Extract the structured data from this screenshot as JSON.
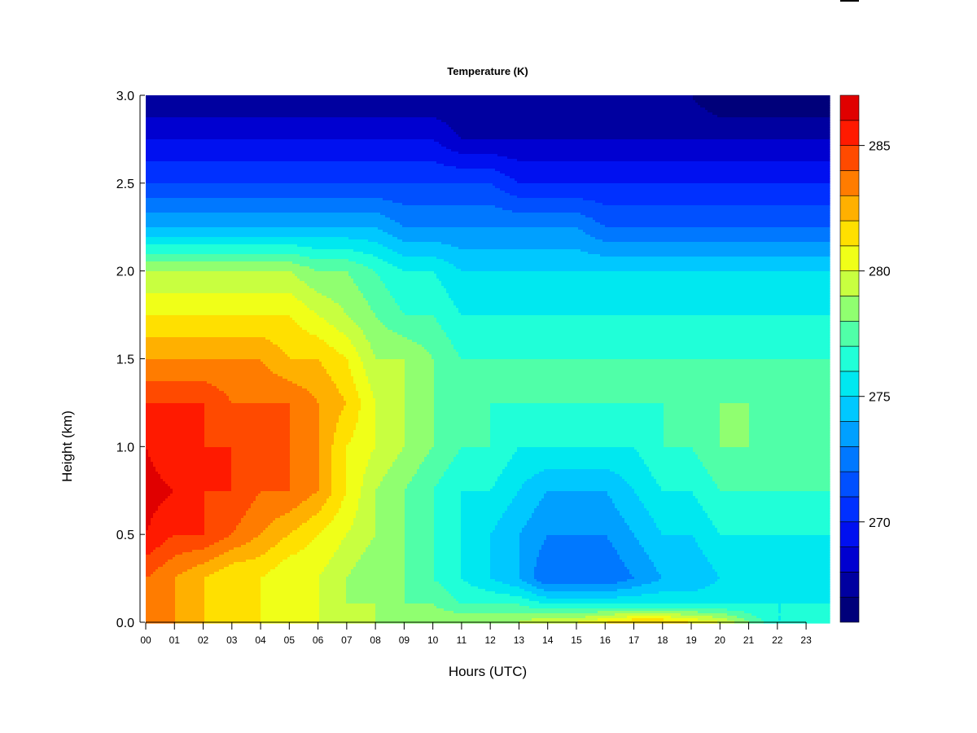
{
  "chart_data": {
    "type": "heatmap",
    "title": "Temperature (K)",
    "xlabel": "Hours (UTC)",
    "ylabel": "Height (km)",
    "xlim": [
      0,
      23.82
    ],
    "ylim": [
      0,
      3.0
    ],
    "x_ticks": [
      "00",
      "01",
      "02",
      "03",
      "04",
      "05",
      "06",
      "07",
      "08",
      "09",
      "10",
      "11",
      "12",
      "13",
      "14",
      "15",
      "16",
      "17",
      "18",
      "19",
      "20",
      "21",
      "22",
      "23"
    ],
    "y_ticks": [
      "0.0",
      "0.5",
      "1.0",
      "1.5",
      "2.0",
      "2.5",
      "3.0"
    ],
    "colorbar": {
      "levels": [
        266,
        267,
        268,
        269,
        270,
        271,
        272,
        273,
        274,
        275,
        276,
        277,
        278,
        279,
        280,
        281,
        282,
        283,
        284,
        285,
        286,
        287
      ],
      "colors": [
        "#00007a",
        "#0000a0",
        "#0000d0",
        "#0010f0",
        "#0030ff",
        "#0050ff",
        "#0078ff",
        "#00a0ff",
        "#00c8ff",
        "#00e8f0",
        "#20ffd8",
        "#50ffa8",
        "#90ff70",
        "#c8ff40",
        "#f0ff18",
        "#ffe000",
        "#ffb000",
        "#ff7c00",
        "#ff4a00",
        "#ff1a00",
        "#e00000",
        "#b00000",
        "#7a0000"
      ],
      "tick_labels": [
        "270",
        "275",
        "280",
        "285"
      ]
    },
    "x": [
      0,
      1,
      2,
      3,
      4,
      5,
      6,
      7,
      8,
      9,
      10,
      11,
      12,
      13,
      14,
      15,
      16,
      17,
      18,
      19,
      20,
      21,
      22,
      23.82
    ],
    "y": [
      0,
      0.1,
      0.25,
      0.5,
      0.75,
      1.0,
      1.25,
      1.5,
      1.75,
      2.0,
      2.25,
      2.5,
      2.75,
      3.0
    ],
    "z": [
      [
        283,
        283,
        282,
        282,
        281,
        281,
        280,
        280,
        279,
        279,
        279,
        279,
        279,
        279,
        280,
        280,
        281,
        282,
        282,
        281,
        280,
        278,
        276,
        276
      ],
      [
        283,
        283,
        282,
        281,
        281,
        280,
        280,
        279,
        279,
        278,
        278,
        277,
        277,
        277,
        276,
        276,
        276,
        276,
        276,
        276,
        276,
        276,
        276,
        276
      ],
      [
        284,
        283,
        282,
        281,
        281,
        280,
        280,
        279,
        278,
        278,
        277,
        276,
        275,
        274,
        272,
        272,
        272,
        273,
        274,
        274,
        275,
        275,
        275,
        275
      ],
      [
        286,
        285,
        285,
        284,
        283,
        282,
        281,
        280,
        279,
        278,
        277,
        276,
        275,
        274,
        273,
        273,
        273,
        274,
        275,
        275,
        276,
        276,
        276,
        276
      ],
      [
        286.5,
        286,
        285,
        285,
        284,
        284,
        283,
        281,
        279,
        278,
        277,
        276,
        276,
        275,
        274,
        274,
        274,
        275,
        276,
        276,
        277,
        277,
        277,
        277
      ],
      [
        286,
        285,
        285,
        285,
        284,
        284,
        283,
        281,
        280,
        279,
        278,
        277,
        277,
        276,
        276,
        276,
        276,
        276,
        277,
        277,
        278,
        278,
        277,
        277
      ],
      [
        285,
        285,
        285,
        284,
        284,
        284,
        283,
        282,
        280,
        279,
        278,
        277,
        277,
        277,
        277,
        277,
        277,
        277,
        277,
        277,
        278,
        278,
        277,
        277
      ],
      [
        283,
        283,
        283,
        283,
        283,
        282,
        282,
        281,
        279,
        279,
        278,
        277,
        277,
        277,
        277,
        277,
        277,
        277,
        277,
        277,
        277,
        277,
        277,
        277
      ],
      [
        281,
        281,
        281,
        281,
        281,
        281,
        280,
        279,
        278,
        277,
        277,
        276,
        276,
        276,
        276,
        276,
        276,
        276,
        276,
        276,
        276,
        276,
        276,
        276
      ],
      [
        279,
        279,
        279,
        279,
        279,
        279,
        278,
        278,
        277,
        276,
        276,
        275,
        275,
        275,
        275,
        275,
        275,
        275,
        275,
        275,
        275,
        275,
        275,
        275
      ],
      [
        274,
        274,
        274,
        274,
        274,
        274,
        274,
        274,
        274,
        273,
        273,
        273,
        273,
        273,
        273,
        273,
        272,
        272,
        272,
        272,
        272,
        272,
        272,
        272
      ],
      [
        271,
        271,
        271,
        271,
        271,
        271,
        271,
        271,
        271,
        271,
        271,
        271,
        271,
        270,
        270,
        270,
        270,
        270,
        270,
        270,
        270,
        270,
        270,
        270
      ],
      [
        269,
        269,
        269,
        269,
        269,
        269,
        269,
        269,
        269,
        269,
        269,
        268,
        268,
        268,
        268,
        268,
        268,
        268,
        268,
        268,
        268,
        268,
        268,
        268
      ],
      [
        267,
        267,
        267,
        267,
        267,
        267,
        267,
        267,
        267,
        267,
        267,
        267,
        267,
        267,
        267,
        267,
        267,
        267,
        267,
        267,
        266,
        266,
        266,
        266
      ]
    ]
  }
}
